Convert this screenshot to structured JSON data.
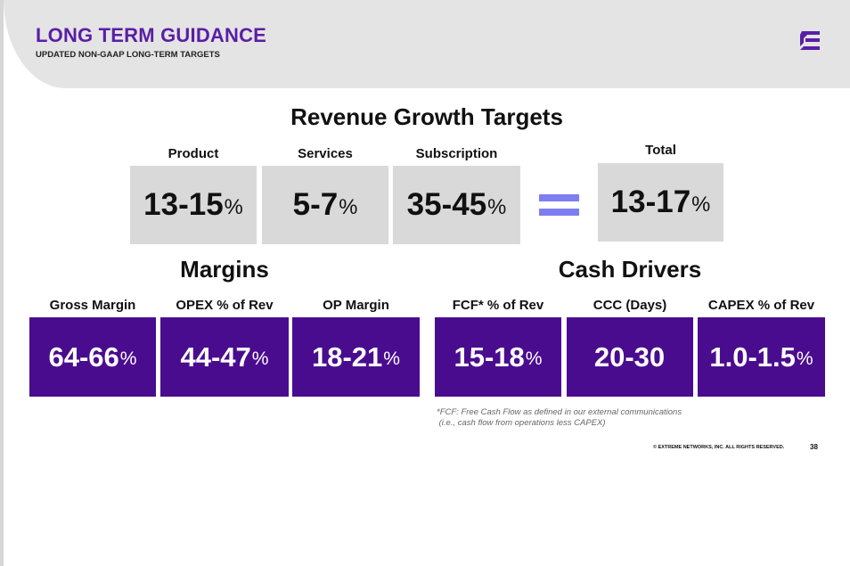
{
  "header": {
    "title": "LONG TERM GUIDANCE",
    "subtitle": "UPDATED NON-GAAP LONG-TERM TARGETS",
    "logo": "extreme-logo-icon"
  },
  "colors": {
    "brand_purple": "#4a0c8f",
    "title_purple": "#5a1ea6",
    "equals": "#7e7ef0",
    "grey_box": "#d9d9d9"
  },
  "revenue": {
    "title": "Revenue Growth Targets",
    "items": [
      {
        "label": "Product",
        "range": "13-15",
        "unit": "%"
      },
      {
        "label": "Services",
        "range": "5-7",
        "unit": "%"
      },
      {
        "label": "Subscription",
        "range": "35-45",
        "unit": "%"
      }
    ],
    "total": {
      "label": "Total",
      "range": "13-17",
      "unit": "%"
    }
  },
  "margins": {
    "title": "Margins",
    "items": [
      {
        "label": "Gross Margin",
        "range": "64-66",
        "unit": "%"
      },
      {
        "label": "OPEX % of Rev",
        "range": "44-47",
        "unit": "%"
      },
      {
        "label": "OP Margin",
        "range": "18-21",
        "unit": "%"
      }
    ]
  },
  "cash": {
    "title": "Cash Drivers",
    "items": [
      {
        "label": "FCF* % of Rev",
        "range": "15-18",
        "unit": "%"
      },
      {
        "label": "CCC (Days)",
        "range": "20-30",
        "unit": ""
      },
      {
        "label": "CAPEX % of Rev",
        "range": "1.0-1.5",
        "unit": "%"
      }
    ]
  },
  "footnote": {
    "line1": "*FCF: Free Cash Flow as defined in our external communications",
    "line2": " (i.e., cash flow from operations less CAPEX)"
  },
  "footer": {
    "copyright": "© EXTREME NETWORKS, INC. ALL RIGHTS RESERVED.",
    "page": "38"
  }
}
